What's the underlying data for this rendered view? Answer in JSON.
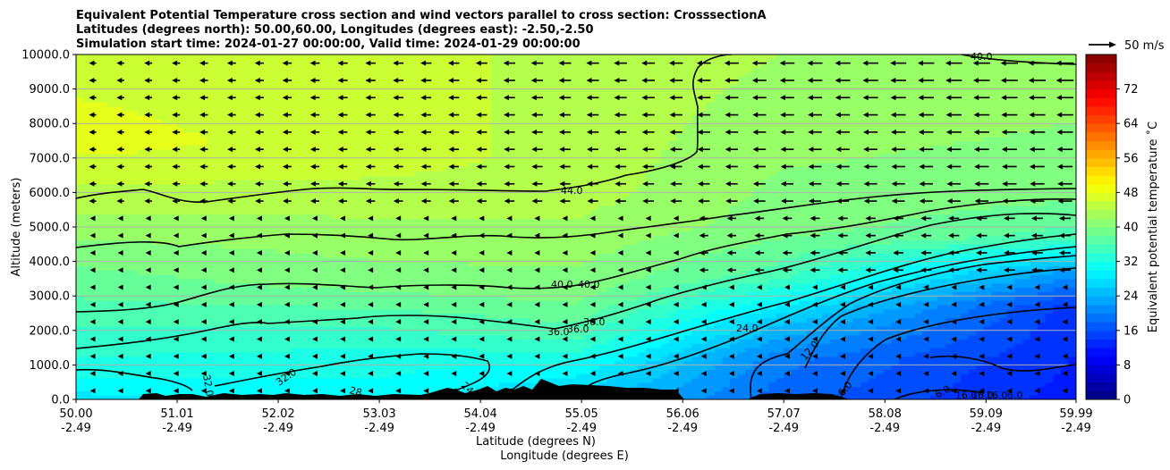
{
  "chart_data": {
    "type": "contour",
    "title_lines": [
      "Equivalent Potential Temperature cross section and wind vectors parallel to cross section: CrosssectionA",
      "Latitudes (degrees north): 50.00,60.00, Longitudes (degrees east): -2.50,-2.50",
      "Simulation start time: 2024-01-27 00:00:00, Valid time: 2024-01-29 00:00:00"
    ],
    "xlabel_lines": [
      "Latitude (degrees N)",
      "Longitude (degrees E)"
    ],
    "ylabel": "Altitude (meters)",
    "x_ticks": [
      {
        "lat": "50.00",
        "lon": "-2.49"
      },
      {
        "lat": "51.01",
        "lon": "-2.49"
      },
      {
        "lat": "52.02",
        "lon": "-2.49"
      },
      {
        "lat": "53.03",
        "lon": "-2.49"
      },
      {
        "lat": "54.04",
        "lon": "-2.49"
      },
      {
        "lat": "55.05",
        "lon": "-2.49"
      },
      {
        "lat": "56.06",
        "lon": "-2.49"
      },
      {
        "lat": "57.07",
        "lon": "-2.49"
      },
      {
        "lat": "58.08",
        "lon": "-2.49"
      },
      {
        "lat": "59.09",
        "lon": "-2.49"
      },
      {
        "lat": "59.99",
        "lon": "-2.49"
      }
    ],
    "xlim": [
      50.0,
      59.99
    ],
    "y_ticks": [
      "0.0",
      "1000.0",
      "2000.0",
      "3000.0",
      "4000.0",
      "5000.0",
      "6000.0",
      "7000.0",
      "8000.0",
      "9000.0",
      "10000.0"
    ],
    "ylim": [
      0,
      10000
    ],
    "grid": "horizontal",
    "colorbar": {
      "label": "Equivalent potential temperature ˚C",
      "range": [
        0,
        80
      ],
      "ticks": [
        "0",
        "8",
        "16",
        "24",
        "32",
        "40",
        "48",
        "56",
        "64",
        "72"
      ],
      "colormap": "jet"
    },
    "quiver_key": "50 m/s",
    "contour_labels": [
      "44.0",
      "40.0",
      "40.0",
      "40.0",
      "36.0",
      "36.0",
      "36.0",
      "32.0",
      "32.0",
      "28",
      "24",
      "24.0",
      "12.0",
      "6.0",
      "6.0",
      "16.0",
      "16.0",
      "16.0",
      "6.0"
    ],
    "theta_e_profiles": [
      {
        "lat": 50.0,
        "levels": [
          {
            "z": 0,
            "t": 28
          },
          {
            "z": 800,
            "t": 32
          },
          {
            "z": 2500,
            "t": 36
          },
          {
            "z": 4300,
            "t": 40
          },
          {
            "z": 5800,
            "t": 44
          },
          {
            "z": 7500,
            "t": 48
          },
          {
            "z": 10000,
            "t": 46
          }
        ]
      },
      {
        "lat": 53.0,
        "levels": [
          {
            "z": 0,
            "t": 30
          },
          {
            "z": 1200,
            "t": 32
          },
          {
            "z": 2400,
            "t": 36
          },
          {
            "z": 3400,
            "t": 40
          },
          {
            "z": 5900,
            "t": 44
          },
          {
            "z": 7000,
            "t": 46
          },
          {
            "z": 10000,
            "t": 45
          }
        ]
      },
      {
        "lat": 55.0,
        "levels": [
          {
            "z": 0,
            "t": 26
          },
          {
            "z": 900,
            "t": 30
          },
          {
            "z": 1900,
            "t": 36
          },
          {
            "z": 3100,
            "t": 40
          },
          {
            "z": 6000,
            "t": 44
          },
          {
            "z": 10000,
            "t": 45
          }
        ]
      },
      {
        "lat": 57.0,
        "levels": [
          {
            "z": 0,
            "t": 18
          },
          {
            "z": 1200,
            "t": 20
          },
          {
            "z": 2300,
            "t": 26
          },
          {
            "z": 3600,
            "t": 36
          },
          {
            "z": 5000,
            "t": 40
          },
          {
            "z": 10000,
            "t": 43
          }
        ]
      },
      {
        "lat": 59.99,
        "levels": [
          {
            "z": 0,
            "t": 12
          },
          {
            "z": 2700,
            "t": 14
          },
          {
            "z": 3700,
            "t": 22
          },
          {
            "z": 4700,
            "t": 36
          },
          {
            "z": 6100,
            "t": 40
          },
          {
            "z": 10000,
            "t": 42
          }
        ]
      }
    ]
  }
}
